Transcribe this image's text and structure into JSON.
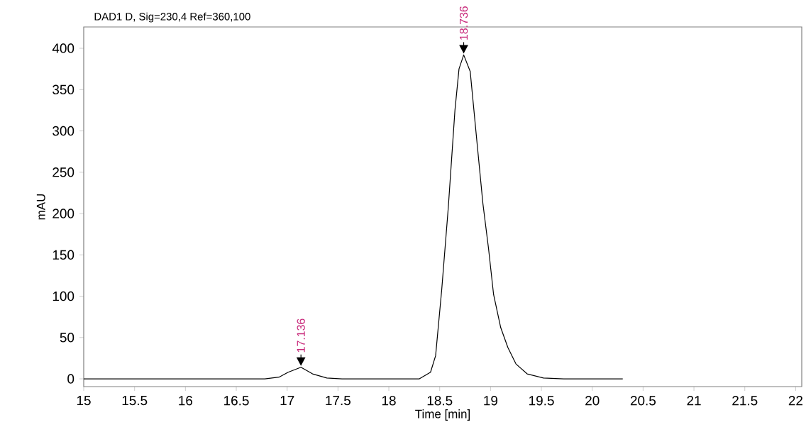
{
  "chart_data": {
    "type": "line",
    "title": "DAD1 D, Sig=230,4 Ref=360,100",
    "xlabel": "Time [min]",
    "ylabel": "mAU",
    "x": [
      15,
      16.78,
      16.92,
      17.01,
      17.136,
      17.25,
      17.39,
      17.54,
      18.3,
      18.41,
      18.46,
      18.52,
      18.585,
      18.65,
      18.69,
      18.736,
      18.8,
      18.87,
      18.925,
      18.98,
      19.03,
      19.1,
      19.17,
      19.25,
      19.36,
      19.52,
      19.72,
      20.3
    ],
    "series": [
      {
        "color": "#000000",
        "values": [
          0,
          0,
          2,
          8,
          14,
          6,
          1,
          0,
          0,
          8,
          28,
          108,
          208,
          325,
          375,
          392,
          372,
          282,
          212,
          158,
          102,
          62,
          38,
          18,
          6,
          1,
          0,
          0
        ]
      }
    ],
    "xlim": [
      15,
      22.06
    ],
    "ylim": [
      -9.4,
      425.8
    ],
    "xticks": [
      15,
      15.5,
      16,
      16.5,
      17,
      17.5,
      18,
      18.5,
      19,
      19.5,
      20,
      20.5,
      21,
      21.5,
      22
    ],
    "yticks": [
      0,
      50,
      100,
      150,
      200,
      250,
      300,
      350,
      400
    ],
    "annotations": [
      {
        "text": "17.136",
        "x": 17.136,
        "y": 14
      },
      {
        "text": "18.736",
        "x": 18.736,
        "y": 392
      }
    ],
    "grid": false,
    "marker": "none",
    "line_style": "solid"
  }
}
